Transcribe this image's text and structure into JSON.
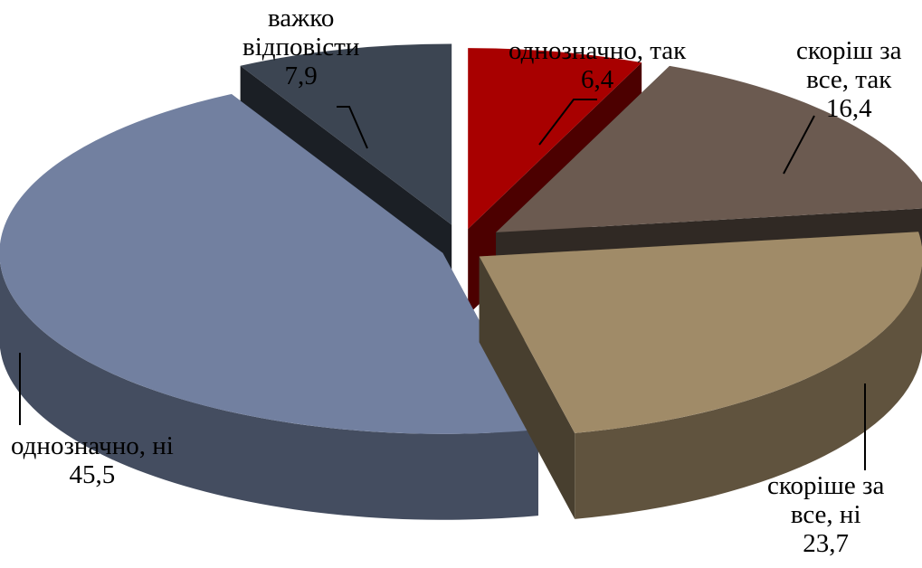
{
  "chart_data": {
    "type": "pie",
    "title": "",
    "style": "3d-exploded",
    "legend": "none",
    "slices": [
      {
        "label_lines": [
          "однозначно, так"
        ],
        "value": 6.4,
        "value_text": "6,4",
        "color": "#a80000"
      },
      {
        "label_lines": [
          "скоріш за",
          "все, так"
        ],
        "value": 16.4,
        "value_text": "16,4",
        "color": "#6b5a50"
      },
      {
        "label_lines": [
          "скоріше за",
          "все, ні"
        ],
        "value": 23.7,
        "value_text": "23,7",
        "color": "#a08b68"
      },
      {
        "label_lines": [
          "однозначно, ні"
        ],
        "value": 45.5,
        "value_text": "45,5",
        "color": "#7280a0"
      },
      {
        "label_lines": [
          "важко",
          "відповісти"
        ],
        "value": 7.9,
        "value_text": "7,9",
        "color": "#3c4552"
      }
    ]
  }
}
